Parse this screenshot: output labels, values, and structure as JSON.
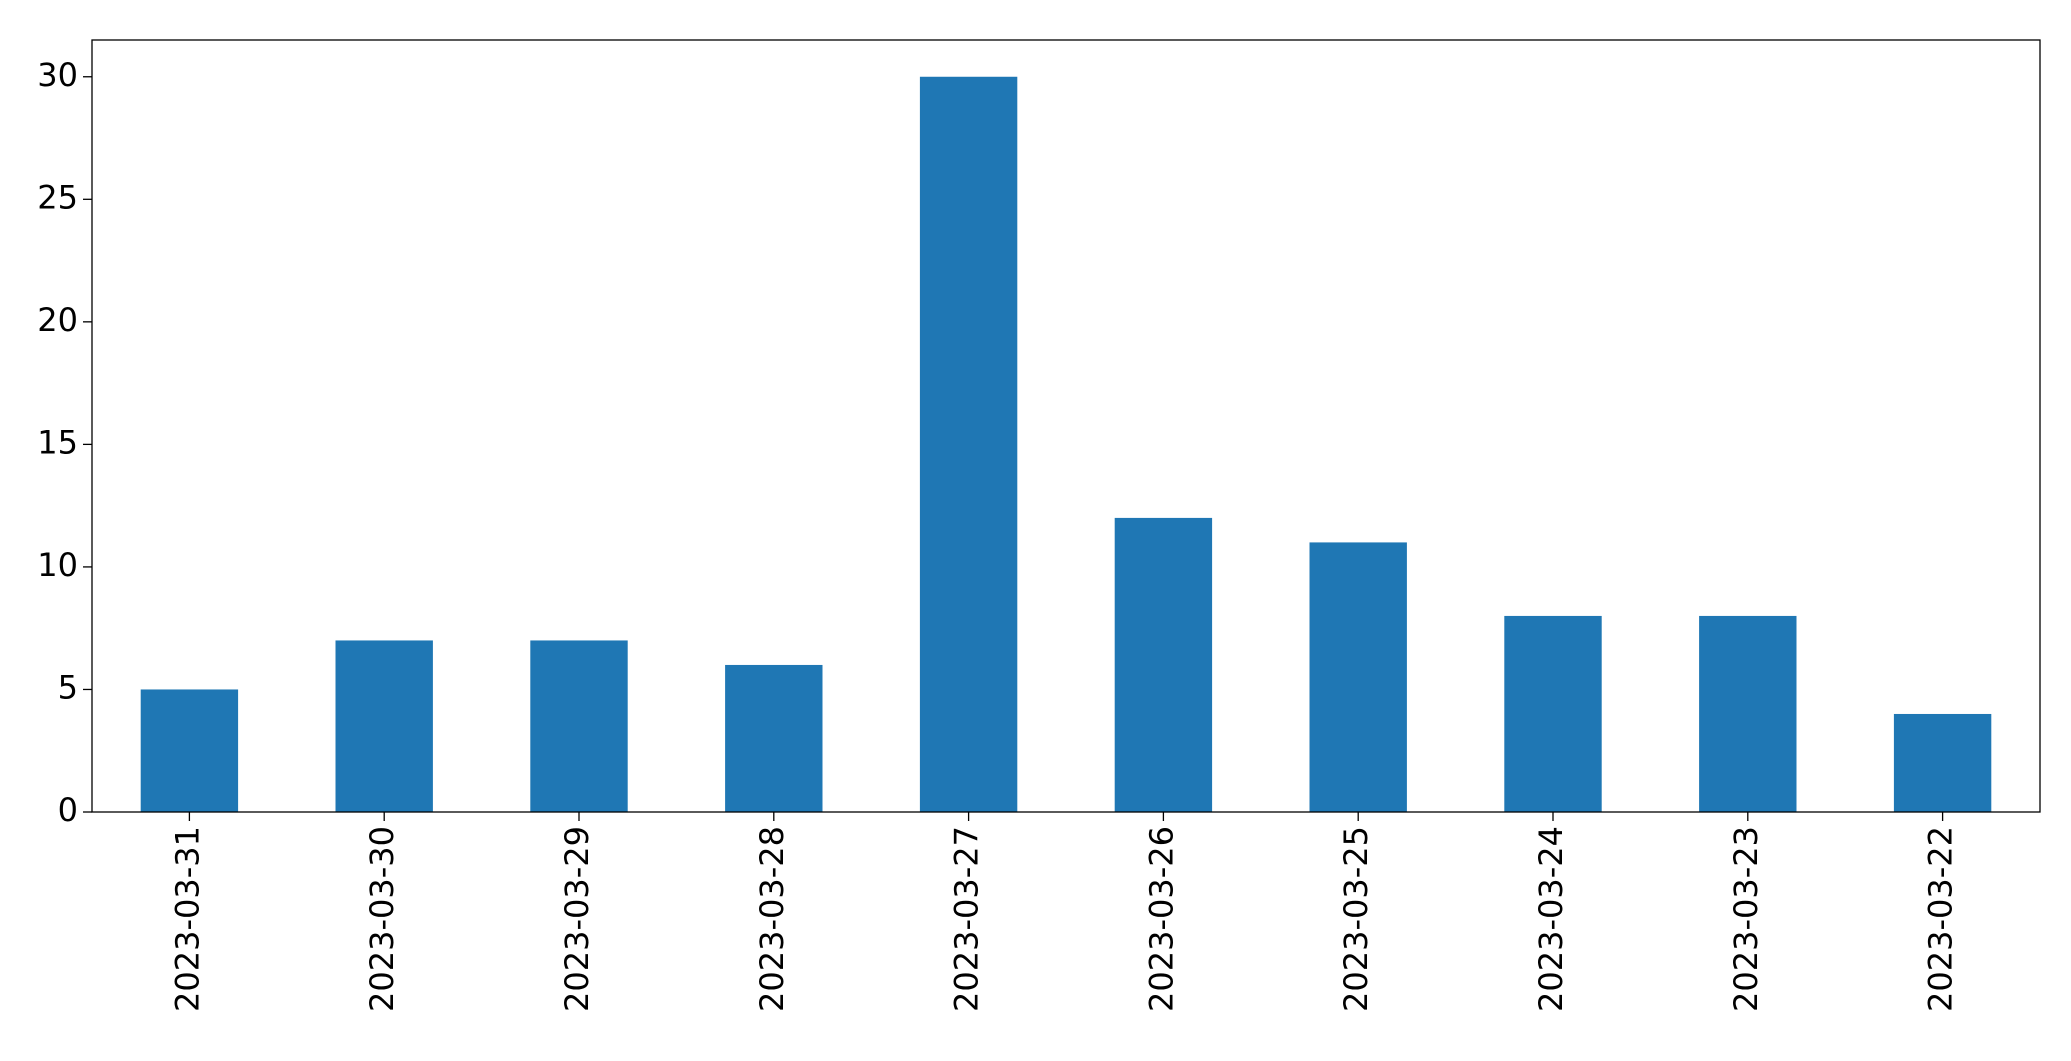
{
  "chart_data": {
    "type": "bar",
    "categories": [
      "2023-03-31",
      "2023-03-30",
      "2023-03-29",
      "2023-03-28",
      "2023-03-27",
      "2023-03-26",
      "2023-03-25",
      "2023-03-24",
      "2023-03-23",
      "2023-03-22"
    ],
    "values": [
      5,
      7,
      7,
      6,
      30,
      12,
      11,
      8,
      8,
      4
    ],
    "color": "#1f77b4",
    "ylim": [
      0,
      31.5
    ],
    "yticks": [
      0,
      5,
      10,
      15,
      20,
      25,
      30
    ],
    "grid": false
  }
}
